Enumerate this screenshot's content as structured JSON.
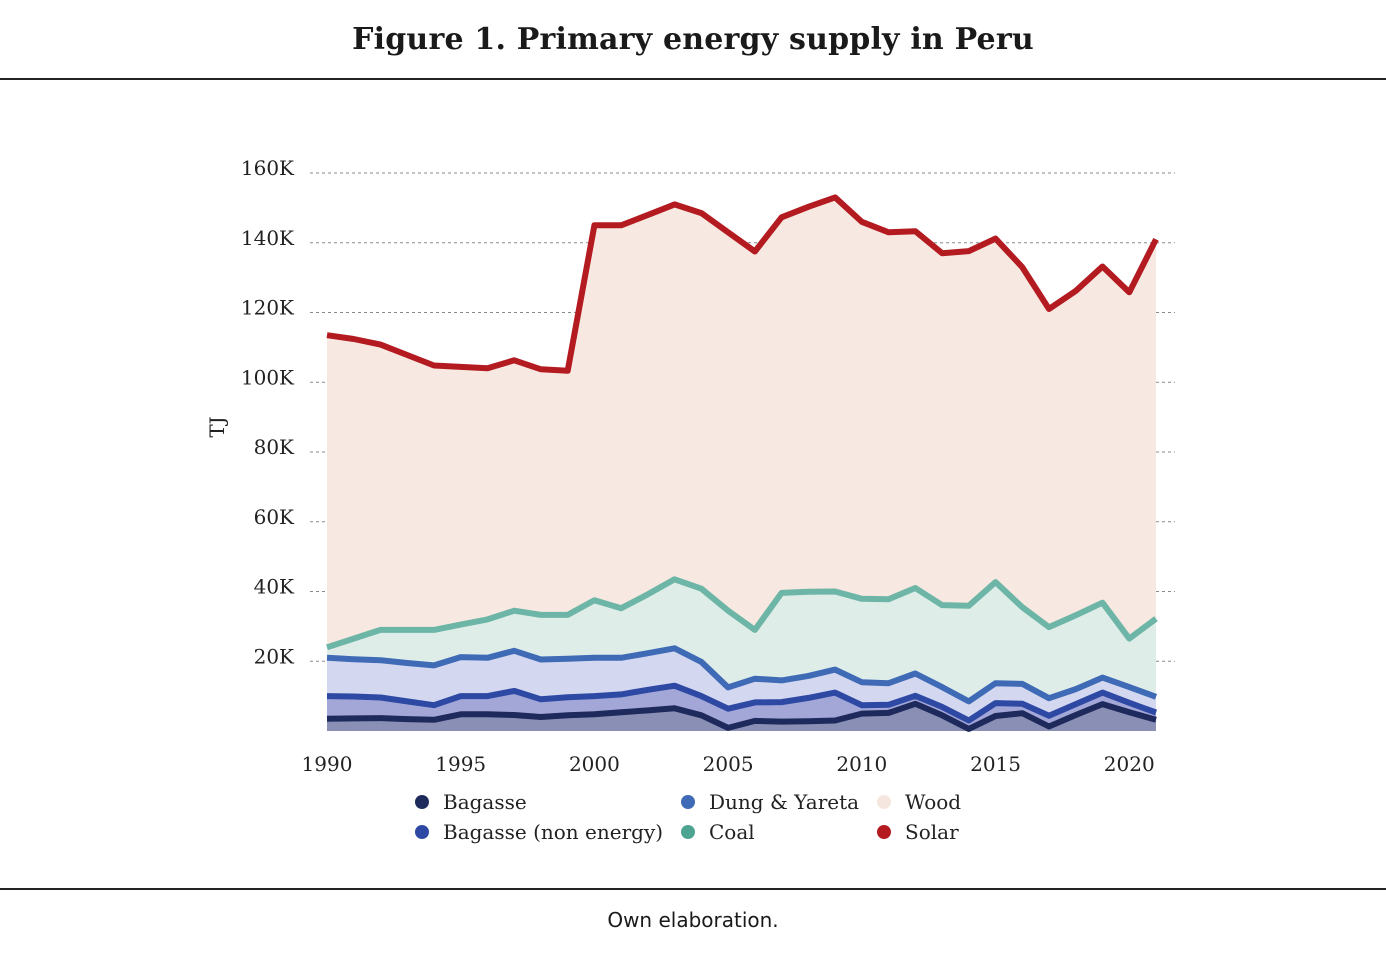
{
  "figure_title": "Figure 1. Primary energy supply in Peru",
  "caption": "Own elaboration.",
  "chart_data": {
    "type": "area",
    "title": "Figure 1. Primary energy supply in Peru",
    "xlabel": "",
    "ylabel": "TJ",
    "xlim": [
      1990,
      2021
    ],
    "ylim": [
      0,
      160000
    ],
    "grid": true,
    "legend_position": "bottom",
    "x": [
      1990,
      1991,
      1992,
      1993,
      1994,
      1995,
      1996,
      1997,
      1998,
      1999,
      2000,
      2001,
      2002,
      2003,
      2004,
      2005,
      2006,
      2007,
      2008,
      2009,
      2010,
      2011,
      2012,
      2013,
      2014,
      2015,
      2016,
      2017,
      2018,
      2019,
      2020,
      2021
    ],
    "x_ticks": [
      1990,
      1995,
      2000,
      2005,
      2010,
      2015,
      2020
    ],
    "x_tick_labels": [
      "1990",
      "1995",
      "2000",
      "2005",
      "2010",
      "2015",
      "2020"
    ],
    "y_ticks": [
      20000,
      40000,
      60000,
      80000,
      100000,
      120000,
      140000,
      160000
    ],
    "y_tick_labels": [
      "20K",
      "40K",
      "60K",
      "80K",
      "100K",
      "120K",
      "140K",
      "160K"
    ],
    "series_cumulative_top": [
      {
        "name": "Bagasse",
        "line_color": "#1f2a5c",
        "fill_color": "#8a8fb5",
        "values": [
          3500,
          3600,
          3700,
          3400,
          3200,
          4800,
          4800,
          4600,
          4000,
          4500,
          4800,
          5400,
          5900,
          6500,
          4500,
          900,
          2900,
          2700,
          2800,
          3000,
          5000,
          5200,
          7800,
          4500,
          600,
          4300,
          5100,
          1300,
          4600,
          7700,
          5400,
          3200
        ]
      },
      {
        "name": "Bagasse (non energy)",
        "line_color": "#2e49a3",
        "fill_color": "#a3a7d8",
        "values": [
          10000,
          9900,
          9600,
          8500,
          7400,
          10000,
          10000,
          11500,
          9100,
          9700,
          10000,
          10500,
          11800,
          13000,
          10000,
          6400,
          8200,
          8300,
          9500,
          11000,
          7400,
          7500,
          10100,
          6900,
          3000,
          8000,
          7800,
          4400,
          7700,
          11000,
          8100,
          5300
        ]
      },
      {
        "name": "Dung & Yareta",
        "line_color": "#3f6ab5",
        "fill_color": "#d3d8f0",
        "values": [
          21000,
          20600,
          20300,
          19500,
          18800,
          21200,
          21000,
          23000,
          20500,
          20700,
          21000,
          21000,
          22300,
          23700,
          19800,
          12500,
          15000,
          14500,
          15800,
          17600,
          14000,
          13700,
          16500,
          12600,
          8500,
          13700,
          13500,
          9400,
          12000,
          15300,
          12600,
          9800
        ]
      },
      {
        "name": "Coal",
        "line_color": "#6db5a6",
        "fill_color": "#dfede9",
        "values": [
          24000,
          26500,
          29000,
          29000,
          29000,
          30500,
          32000,
          34500,
          33300,
          33300,
          37500,
          35200,
          39200,
          43500,
          40800,
          34500,
          29000,
          39600,
          39900,
          40000,
          37900,
          37800,
          41000,
          36100,
          35900,
          42700,
          35500,
          29800,
          33200,
          36800,
          26500,
          32200
        ]
      },
      {
        "name": "Wood",
        "line_color": "#f5e7df",
        "fill_color": "#f7e9e1",
        "values": [
          113500,
          112400,
          110800,
          107800,
          104800,
          104400,
          104000,
          106300,
          103700,
          103300,
          145000,
          145000,
          148000,
          151000,
          148500,
          143000,
          137500,
          147300,
          150300,
          153000,
          146000,
          143000,
          143300,
          137000,
          137600,
          141200,
          133000,
          121000,
          126200,
          133200,
          125800,
          141000
        ]
      },
      {
        "name": "Solar",
        "line_color": "#b31b20",
        "fill_color": "#b31b20",
        "values": [
          113500,
          112400,
          110800,
          107800,
          104800,
          104400,
          104000,
          106300,
          103700,
          103300,
          145000,
          145000,
          148000,
          151000,
          148500,
          143000,
          137500,
          147300,
          150300,
          153000,
          146000,
          143000,
          143300,
          137000,
          137600,
          141200,
          133000,
          121000,
          126200,
          133200,
          125800,
          141000
        ]
      }
    ],
    "legend": [
      {
        "label": "Bagasse",
        "color": "#1f2a5c"
      },
      {
        "label": "Dung & Yareta",
        "color": "#3f6ab5"
      },
      {
        "label": "Wood",
        "color": "#f5e7df"
      },
      {
        "label": "Bagasse (non energy)",
        "color": "#2e49a3"
      },
      {
        "label": "Coal",
        "color": "#4fa393"
      },
      {
        "label": "Solar",
        "color": "#b31b20"
      }
    ]
  }
}
